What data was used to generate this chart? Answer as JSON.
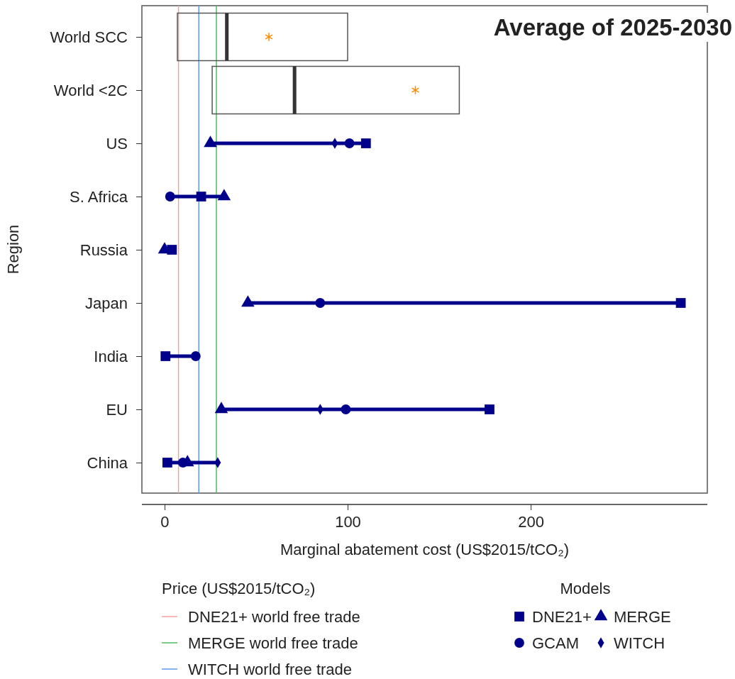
{
  "chart_data": {
    "type": "box",
    "orientation": "horizontal",
    "title": "Average of 2025-2030",
    "xlabel": "Marginal abatement cost (US$2015/tCO₂)",
    "ylabel": "Region",
    "legend_title": "Models",
    "legend": "bottom",
    "grid": false,
    "categories": [
      "World SCC",
      "World <2C",
      "US",
      "S. Africa",
      "Russia",
      "Japan",
      "India",
      "EU",
      "China"
    ],
    "xlim": [
      -12.4,
      296.5
    ],
    "xticks": [
      0,
      100,
      200
    ],
    "boxes": [
      {
        "low": 7,
        "q1": 7,
        "median": 34,
        "q3": 100,
        "high": 100,
        "mean": 57
      },
      {
        "low": 26,
        "q1": 26,
        "median": 71,
        "q3": 161,
        "high": 161,
        "mean": 137
      },
      null,
      null,
      null,
      null,
      null,
      null,
      null
    ],
    "series": [
      {
        "name": "DNE21+",
        "type": "scatter",
        "marker": "square",
        "color": "#00008b",
        "values": [
          null,
          null,
          110,
          20,
          4,
          282,
          0.5,
          177.5,
          1.5
        ]
      },
      {
        "name": "GCAM",
        "type": "scatter",
        "marker": "circle",
        "color": "#00008b",
        "values": [
          null,
          null,
          101,
          3,
          null,
          85,
          17,
          99,
          10
        ]
      },
      {
        "name": "MERGE",
        "type": "scatter",
        "marker": "triangle",
        "color": "#00008b",
        "values": [
          null,
          null,
          25,
          32.5,
          0,
          45.5,
          null,
          31,
          12.5
        ]
      },
      {
        "name": "WITCH",
        "type": "scatter",
        "marker": "diamond",
        "color": "#00008b",
        "values": [
          null,
          null,
          93,
          null,
          null,
          null,
          null,
          85,
          29
        ]
      }
    ],
    "ref_lines": [
      {
        "axis": "x",
        "value": 7.6,
        "label": "DNE21+ world free trade",
        "color": "#f4a0a0"
      },
      {
        "axis": "x",
        "value": 28.3,
        "label": "MERGE world free trade",
        "color": "#4dbd5f"
      },
      {
        "axis": "x",
        "value": 18.7,
        "label": "WITCH world free trade",
        "color": "#5a9bf0"
      }
    ],
    "annotations": [
      "Price (US$2015/tCO₂)"
    ]
  }
}
